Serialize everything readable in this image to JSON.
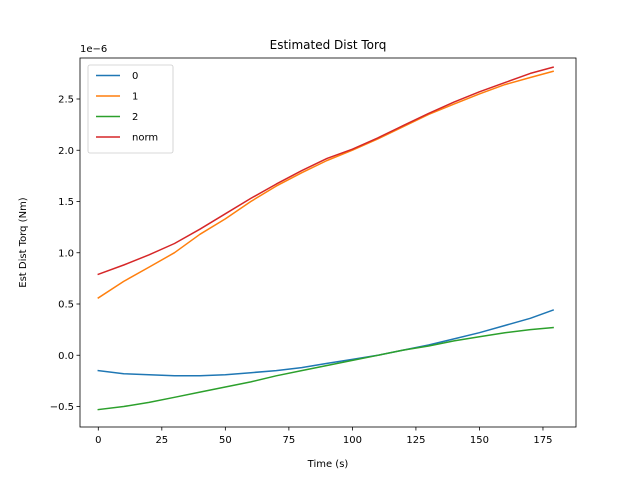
{
  "chart_data": {
    "type": "line",
    "title": "Estimated Dist Torq",
    "xlabel": "Time (s)",
    "ylabel": "Est Dist Torq (Nm)",
    "y_scale_label": "1e−6",
    "xlim": [
      -7.2,
      188
    ],
    "ylim": [
      -0.7,
      2.9
    ],
    "xticks": [
      0,
      25,
      50,
      75,
      100,
      125,
      150,
      175
    ],
    "yticks": [
      -0.5,
      0.0,
      0.5,
      1.0,
      1.5,
      2.0,
      2.5
    ],
    "ytick_labels": [
      "−0.5",
      "0.0",
      "0.5",
      "1.0",
      "1.5",
      "2.0",
      "2.5"
    ],
    "legend_position": "upper-left",
    "grid": false,
    "series": [
      {
        "name": "0",
        "color": "#1f77b4",
        "x": [
          0,
          10,
          20,
          30,
          40,
          50,
          60,
          70,
          80,
          90,
          100,
          110,
          120,
          130,
          140,
          150,
          160,
          170,
          179
        ],
        "y": [
          -0.15,
          -0.18,
          -0.19,
          -0.2,
          -0.2,
          -0.19,
          -0.17,
          -0.15,
          -0.12,
          -0.08,
          -0.04,
          0.0,
          0.05,
          0.1,
          0.16,
          0.22,
          0.29,
          0.36,
          0.44
        ]
      },
      {
        "name": "1",
        "color": "#ff7f0e",
        "x": [
          0,
          10,
          20,
          30,
          40,
          50,
          60,
          70,
          80,
          90,
          100,
          110,
          120,
          130,
          140,
          150,
          160,
          170,
          179
        ],
        "y": [
          0.56,
          0.72,
          0.86,
          1.0,
          1.18,
          1.33,
          1.5,
          1.65,
          1.78,
          1.9,
          2.0,
          2.11,
          2.23,
          2.35,
          2.45,
          2.55,
          2.64,
          2.71,
          2.77
        ]
      },
      {
        "name": "2",
        "color": "#2ca02c",
        "x": [
          0,
          10,
          20,
          30,
          40,
          50,
          60,
          70,
          80,
          90,
          100,
          110,
          120,
          130,
          140,
          150,
          160,
          170,
          179
        ],
        "y": [
          -0.53,
          -0.5,
          -0.46,
          -0.41,
          -0.36,
          -0.31,
          -0.26,
          -0.2,
          -0.15,
          -0.1,
          -0.05,
          0.0,
          0.05,
          0.09,
          0.14,
          0.18,
          0.22,
          0.25,
          0.27
        ]
      },
      {
        "name": "norm",
        "color": "#d62728",
        "x": [
          0,
          10,
          20,
          30,
          40,
          50,
          60,
          70,
          80,
          90,
          100,
          110,
          120,
          130,
          140,
          150,
          160,
          170,
          179
        ],
        "y": [
          0.79,
          0.88,
          0.98,
          1.09,
          1.23,
          1.38,
          1.53,
          1.67,
          1.8,
          1.92,
          2.01,
          2.12,
          2.24,
          2.36,
          2.47,
          2.57,
          2.66,
          2.75,
          2.81
        ]
      }
    ]
  }
}
